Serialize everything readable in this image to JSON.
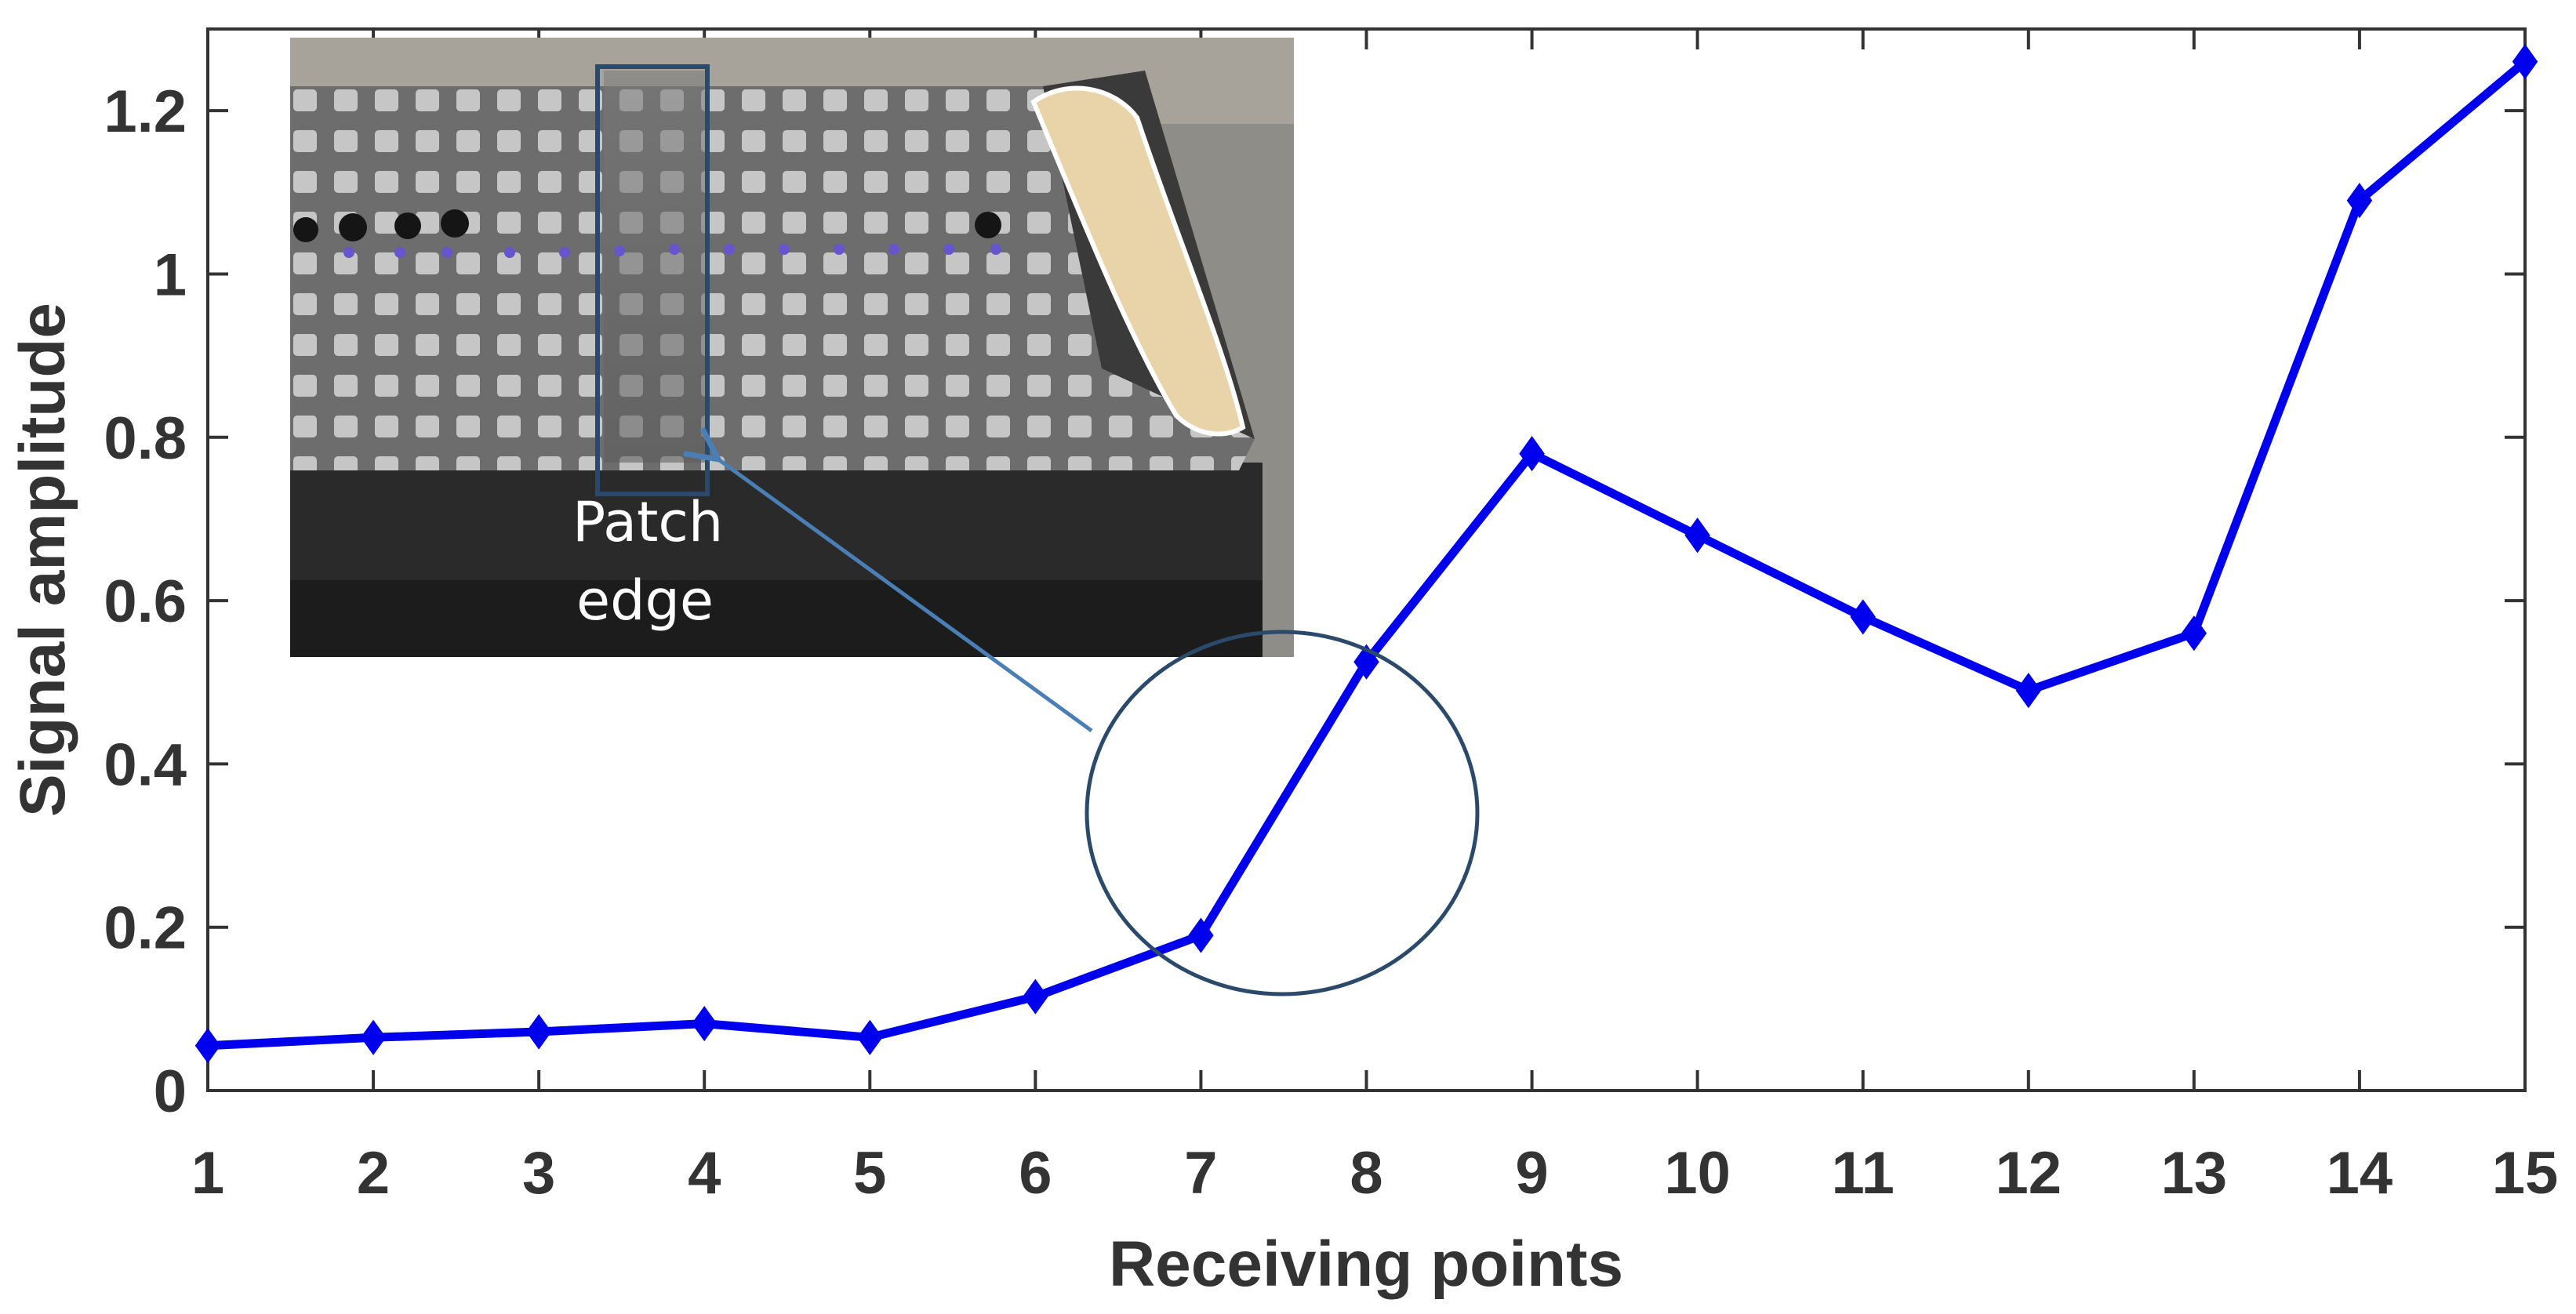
{
  "chart_data": {
    "type": "line",
    "xlabel": "Receiving points",
    "ylabel": "Signal amplitude",
    "x": [
      1,
      2,
      3,
      4,
      5,
      6,
      7,
      8,
      9,
      10,
      11,
      12,
      13,
      14,
      15
    ],
    "xlim": [
      1,
      15
    ],
    "ylim": [
      0,
      1.3
    ],
    "xticks": [
      1,
      2,
      3,
      4,
      5,
      6,
      7,
      8,
      9,
      10,
      11,
      12,
      13,
      14,
      15
    ],
    "yticks": [
      0,
      0.2,
      0.4,
      0.6,
      0.8,
      1,
      1.2
    ],
    "ytick_labels": [
      "0",
      "0.2",
      "0.4",
      "0.6",
      "0.8",
      "1",
      "1.2"
    ],
    "series": [
      {
        "values": [
          0.055,
          0.065,
          0.072,
          0.082,
          0.065,
          0.115,
          0.19,
          0.525,
          0.78,
          0.68,
          0.58,
          0.49,
          0.56,
          1.09,
          1.26
        ],
        "color": "#0000ee",
        "marker": "diamond"
      }
    ],
    "grid": false,
    "annotations": {
      "inset_label_line1": "Patch",
      "inset_label_line2": "edge",
      "highlight_circle_around": [
        7,
        8
      ],
      "circle_color": "#2b4a6b",
      "arrow_color": "#4a7fb5"
    }
  }
}
